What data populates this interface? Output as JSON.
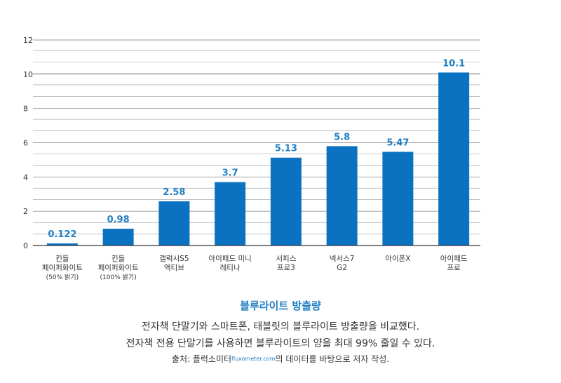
{
  "chart_data": {
    "type": "bar",
    "categories": [
      [
        "킨들",
        "페이퍼화이트",
        "(50% 밝기)"
      ],
      [
        "킨들",
        "페이퍼화이트",
        "(100% 밝기)"
      ],
      [
        "갤럭시S5",
        "액티브"
      ],
      [
        "아이패드 미니",
        "레티나"
      ],
      [
        "서피스",
        "프로3"
      ],
      [
        "넥서스7",
        "G2"
      ],
      [
        "아이폰X"
      ],
      [
        "아이패드",
        "프로"
      ]
    ],
    "values": [
      0.122,
      0.98,
      2.58,
      3.7,
      5.13,
      5.8,
      5.47,
      10.1
    ],
    "value_labels": [
      "0.122",
      "0.98",
      "2.58",
      "3.7",
      "5.13",
      "5.8",
      "5.47",
      "10.1"
    ],
    "ylim": [
      0,
      12
    ],
    "yticks": [
      0,
      2,
      4,
      6,
      8,
      10,
      12
    ],
    "ytick_labels": [
      "0",
      "2",
      "4",
      "6",
      "8",
      "10",
      "12"
    ],
    "minor_grid_step": 0.67,
    "grid": true,
    "bar_color": "#0a72c0",
    "label_color": "#1f7fc4",
    "grid_color": "#9a9a9a",
    "axis_color": "#333333"
  },
  "caption": {
    "title": "블루라이트 방출량",
    "line1": "전자책 단말기와 스마트폰, 태블릿의 블루라이트 방출량을 비교했다.",
    "line2": "전자책 전용 단말기를 사용하면 블루라이트의 양을 최대 99% 줄일 수 있다.",
    "source_prefix": "출처: 플럭소미터",
    "source_site": "fluxometer.com",
    "source_suffix": "의 데이터를 바탕으로 저자 작성."
  }
}
